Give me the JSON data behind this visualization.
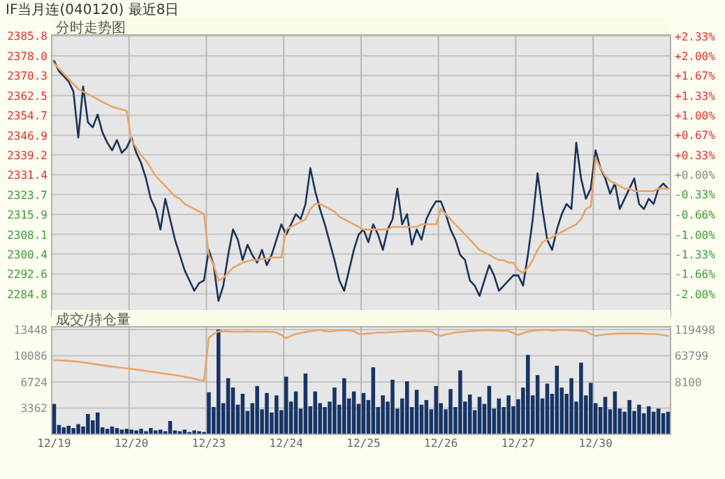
{
  "chart_data": [
    {
      "type": "line",
      "title": "IF当月连(040120) 最近8日",
      "subtitle": "分时走势图",
      "categories": [
        null,
        null,
        null,
        null,
        null,
        null,
        null,
        null,
        null,
        null,
        null,
        null,
        null,
        null,
        null,
        null,
        null,
        null,
        null,
        null,
        null,
        null,
        null,
        null,
        null,
        null,
        null,
        null,
        null,
        null,
        null,
        null,
        null,
        null,
        null,
        null,
        null,
        null,
        null,
        null,
        null,
        null,
        null,
        null,
        null,
        null,
        null,
        null,
        null,
        null,
        null,
        null,
        null,
        null,
        null,
        null,
        null,
        null,
        null,
        null,
        null,
        null,
        null,
        null,
        null,
        null,
        null,
        null,
        null,
        null,
        null,
        null,
        null,
        null,
        null,
        null,
        null,
        null,
        null,
        null,
        null,
        null,
        null,
        null,
        null,
        null,
        null,
        null,
        null,
        null,
        null,
        null,
        null,
        null,
        null,
        null,
        null,
        null,
        null,
        null,
        null,
        null,
        null,
        null,
        null,
        null,
        null,
        null,
        null,
        null,
        null,
        null,
        null,
        null,
        null,
        null,
        null,
        null,
        null,
        null,
        null,
        null,
        null,
        null,
        null,
        null,
        null,
        null
      ],
      "series": [
        {
          "color": "#1b3358",
          "values": [
            2376,
            2372,
            2370,
            2368,
            2364,
            2346,
            2366,
            2352,
            2350,
            2355,
            2348,
            2344,
            2341,
            2345,
            2340,
            2342,
            2346,
            2340,
            2336,
            2330,
            2322,
            2318,
            2310,
            2322,
            2314,
            2306,
            2300,
            2294,
            2290,
            2286,
            2289,
            2290,
            2302,
            2296,
            2282,
            2288,
            2300,
            2310,
            2306,
            2298,
            2304,
            2300,
            2297,
            2302,
            2296,
            2300,
            2306,
            2312,
            2308,
            2312,
            2316,
            2314,
            2320,
            2334,
            2325,
            2318,
            2312,
            2305,
            2298,
            2290,
            2286,
            2294,
            2302,
            2308,
            2310,
            2305,
            2312,
            2308,
            2302,
            2310,
            2314,
            2326,
            2312,
            2316,
            2304,
            2310,
            2306,
            2314,
            2318,
            2321,
            2321,
            2316,
            2310,
            2306,
            2300,
            2298,
            2290,
            2288,
            2284,
            2290,
            2296,
            2292,
            2286,
            2288,
            2290,
            2292,
            2292,
            2288,
            2300,
            2314,
            2332,
            2318,
            2306,
            2302,
            2310,
            2316,
            2320,
            2318,
            2344,
            2330,
            2322,
            2326,
            2341,
            2334,
            2330,
            2324,
            2328,
            2318,
            2322,
            2326,
            2330,
            2320,
            2318,
            2322,
            2320,
            2326,
            2328,
            2326
          ]
        },
        {
          "color": "#e8a56a",
          "values": [
            2375,
            2373,
            2371,
            2369,
            2367,
            2365,
            2364,
            2363,
            2362,
            2361,
            2360,
            2359,
            2358,
            2357.5,
            2357,
            2356.5,
            2345,
            2342,
            2339,
            2337,
            2334,
            2331,
            2329,
            2327,
            2325,
            2323,
            2322,
            2320,
            2319,
            2318,
            2317,
            2316,
            2300,
            2296,
            2290,
            2291,
            2293,
            2295,
            2296,
            2297,
            2297.5,
            2298,
            2298,
            2298.5,
            2298.5,
            2299,
            2299,
            2299,
            2310,
            2311,
            2312,
            2313,
            2314,
            2318,
            2320,
            2320,
            2319,
            2318,
            2317,
            2315,
            2314,
            2313,
            2312,
            2311,
            2310,
            2310,
            2310,
            2310,
            2310,
            2310,
            2311,
            2311,
            2311,
            2311,
            2311,
            2311,
            2312,
            2312,
            2312,
            2312,
            2318,
            2316,
            2314,
            2312,
            2310,
            2308,
            2306,
            2304,
            2302,
            2301,
            2300,
            2299,
            2298,
            2298,
            2297,
            2297,
            2294,
            2293,
            2295,
            2298,
            2302,
            2305,
            2306,
            2307,
            2308,
            2309,
            2310,
            2311,
            2312,
            2314,
            2318,
            2319,
            2338,
            2334,
            2331,
            2329,
            2328,
            2327,
            2326,
            2326,
            2325,
            2325,
            2325,
            2325,
            2325,
            2326,
            2326,
            2326
          ]
        }
      ],
      "ylim": [
        2275.7,
        2386.2
      ],
      "yticks": [
        2284.8,
        2292.6,
        2300.4,
        2308.1,
        2315.9,
        2323.7,
        2331.4,
        2339.2,
        2346.9,
        2354.7,
        2362.5,
        2370.3,
        {
          "value": 2378,
          "label": "2378.0"
        },
        2385.8
      ],
      "y2lim": [
        -2.389,
        2.3505
      ],
      "y2ticks": [
        {
          "value": 2.33,
          "label": "+2.33%"
        },
        {
          "value": 2,
          "label": "+2.00%"
        },
        {
          "value": 1.67,
          "label": "+1.67%"
        },
        {
          "value": 1.33,
          "label": "+1.33%"
        },
        {
          "value": 1,
          "label": "+1.00%"
        },
        {
          "value": 0.67,
          "label": "+0.67%"
        },
        {
          "value": 0.33,
          "label": "+0.33%"
        },
        {
          "value": 0,
          "label": "+0.00%"
        },
        {
          "value": -0.33,
          "label": "-0.33%"
        },
        {
          "value": -0.66,
          "label": "-0.66%"
        },
        {
          "value": -1,
          "label": "-1.00%"
        },
        {
          "value": -1.33,
          "label": "-1.33%"
        },
        {
          "value": -1.66,
          "label": "-1.66%"
        },
        {
          "value": -2,
          "label": "-2.00%"
        }
      ],
      "grid": true,
      "tick_labels": "y"
    },
    {
      "type": "bar",
      "title": "成交/持仓量",
      "categories": [
        "12/19",
        null,
        null,
        null,
        null,
        null,
        null,
        null,
        null,
        null,
        null,
        null,
        null,
        null,
        null,
        null,
        "12/20",
        null,
        null,
        null,
        null,
        null,
        null,
        null,
        null,
        null,
        null,
        null,
        null,
        null,
        null,
        null,
        "12/23",
        null,
        null,
        null,
        null,
        null,
        null,
        null,
        null,
        null,
        null,
        null,
        null,
        null,
        null,
        null,
        "12/24",
        null,
        null,
        null,
        null,
        null,
        null,
        null,
        null,
        null,
        null,
        null,
        null,
        null,
        null,
        null,
        "12/25",
        null,
        null,
        null,
        null,
        null,
        null,
        null,
        null,
        null,
        null,
        null,
        null,
        null,
        null,
        null,
        "12/26",
        null,
        null,
        null,
        null,
        null,
        null,
        null,
        null,
        null,
        null,
        null,
        null,
        null,
        null,
        null,
        "12/27",
        null,
        null,
        null,
        null,
        null,
        null,
        null,
        null,
        null,
        null,
        null,
        null,
        null,
        null,
        null,
        "12/30",
        null,
        null,
        null,
        null,
        null,
        null,
        null,
        null,
        null,
        null,
        null,
        null,
        null,
        null,
        null
      ],
      "series": [
        {
          "color": "#173466",
          "values": [
            3900,
            1200,
            900,
            1100,
            800,
            1300,
            1000,
            2600,
            1800,
            2800,
            900,
            700,
            1000,
            800,
            600,
            700,
            600,
            500,
            700,
            400,
            800,
            500,
            600,
            400,
            1700,
            500,
            400,
            600,
            300,
            500,
            400,
            300,
            5400,
            3500,
            13448,
            4000,
            7200,
            6000,
            3800,
            5200,
            3000,
            4000,
            6200,
            3200,
            5300,
            2800,
            5000,
            3100,
            7400,
            4200,
            5500,
            3300,
            7800,
            3600,
            5500,
            4000,
            3500,
            4200,
            6000,
            3800,
            7200,
            4600,
            5500,
            3900,
            5300,
            4400,
            8600,
            3500,
            5000,
            4200,
            7000,
            3300,
            4600,
            6800,
            3500,
            5700,
            3800,
            4400,
            3200,
            6200,
            4000,
            3200,
            5800,
            3500,
            8200,
            4200,
            5100,
            3100,
            4800,
            3900,
            6200,
            3300,
            4600,
            3500,
            5000,
            3600,
            4500,
            6000,
            10200,
            5000,
            7600,
            4600,
            6500,
            5200,
            8800,
            6000,
            5200,
            7200,
            4200,
            9200,
            5000,
            6600,
            4000,
            3500,
            4800,
            3200,
            5500,
            3300,
            2900,
            4400,
            3000,
            3800,
            2700,
            3600,
            2900,
            3300,
            2700,
            2900
          ]
        },
        {
          "type": "line",
          "axis": "y2",
          "color": "#e8a56a",
          "values": [
            54300,
            54000,
            53500,
            53000,
            52000,
            51000,
            49500,
            48000,
            46500,
            45000,
            43500,
            42000,
            40500,
            39500,
            38000,
            37000,
            36000,
            34500,
            33000,
            31500,
            30000,
            28500,
            27000,
            25500,
            24000,
            22500,
            21000,
            19000,
            17000,
            15000,
            12500,
            10000,
            102000,
            110000,
            115500,
            116000,
            115500,
            115000,
            115000,
            115000,
            115500,
            115000,
            115000,
            115000,
            115000,
            114500,
            113000,
            108000,
            101000,
            106000,
            110000,
            112000,
            114000,
            116000,
            117000,
            118500,
            116000,
            115000,
            116500,
            117500,
            118000,
            117500,
            116000,
            110000,
            110000,
            111000,
            112000,
            113000,
            113000,
            113500,
            114000,
            114500,
            115000,
            115500,
            116000,
            116000,
            116500,
            116000,
            115000,
            109000,
            106000,
            109000,
            111000,
            113000,
            114000,
            115000,
            116000,
            117000,
            117500,
            118000,
            118500,
            118000,
            117000,
            117000,
            116500,
            112000,
            108000,
            112000,
            115000,
            117000,
            118000,
            118500,
            119000,
            117500,
            118000,
            119000,
            118500,
            117500,
            117500,
            117000,
            116000,
            110000,
            106000,
            108000,
            109000,
            110000,
            110500,
            111000,
            111000,
            111000,
            111000,
            111000,
            110500,
            110000,
            110000,
            109000,
            108000,
            106000
          ]
        }
      ],
      "ylim": [
        0,
        13800
      ],
      "yticks": [
        3362,
        6724,
        10086,
        13448
      ],
      "y2lim": [
        -103298,
        125330
      ],
      "y2ticks": [
        8100,
        63799,
        119498
      ],
      "grid": true
    }
  ]
}
